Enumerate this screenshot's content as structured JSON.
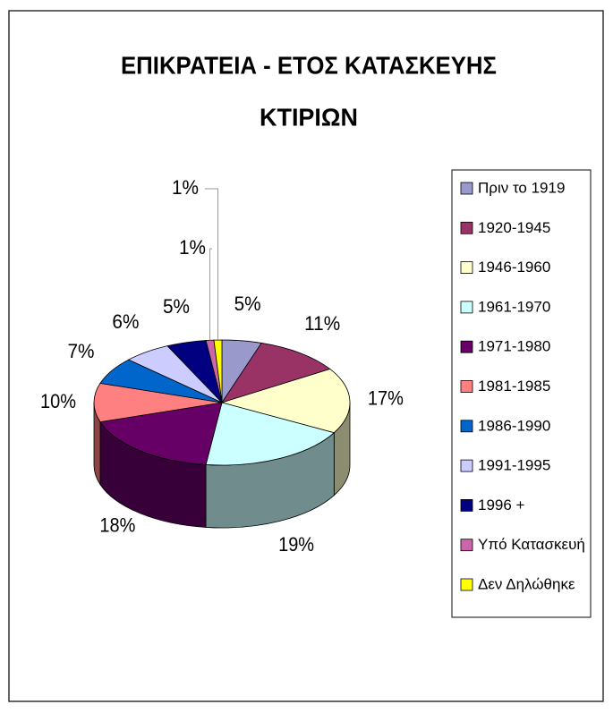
{
  "chart_data": {
    "type": "pie3d",
    "title": [
      "ΕΠΙΚΡΑΤΕΙΑ - ΕΤΟΣ ΚΑΤΑΣΚΕΥΗΣ",
      "ΚΤΙΡΙΩΝ"
    ],
    "categories": [
      "Πριν το 1919",
      "1920-1945",
      "1946-1960",
      "1961-1970",
      "1971-1980",
      "1981-1985",
      "1986-1990",
      "1991-1995",
      "1996 +",
      "Υπό Κατασκευή",
      "Δεν Δηλώθηκε"
    ],
    "values": [
      5,
      11,
      17,
      19,
      18,
      10,
      7,
      6,
      5,
      1,
      1
    ],
    "value_labels": [
      "5%",
      "11%",
      "17%",
      "19%",
      "18%",
      "10%",
      "7%",
      "6%",
      "5%",
      "1%",
      "1%"
    ],
    "colors": [
      "#9999cc",
      "#993366",
      "#ffffcc",
      "#ccffff",
      "#660066",
      "#ff8080",
      "#0066cc",
      "#ccccff",
      "#000080",
      "#cc66aa",
      "#ffff00"
    ],
    "legend": "right"
  }
}
